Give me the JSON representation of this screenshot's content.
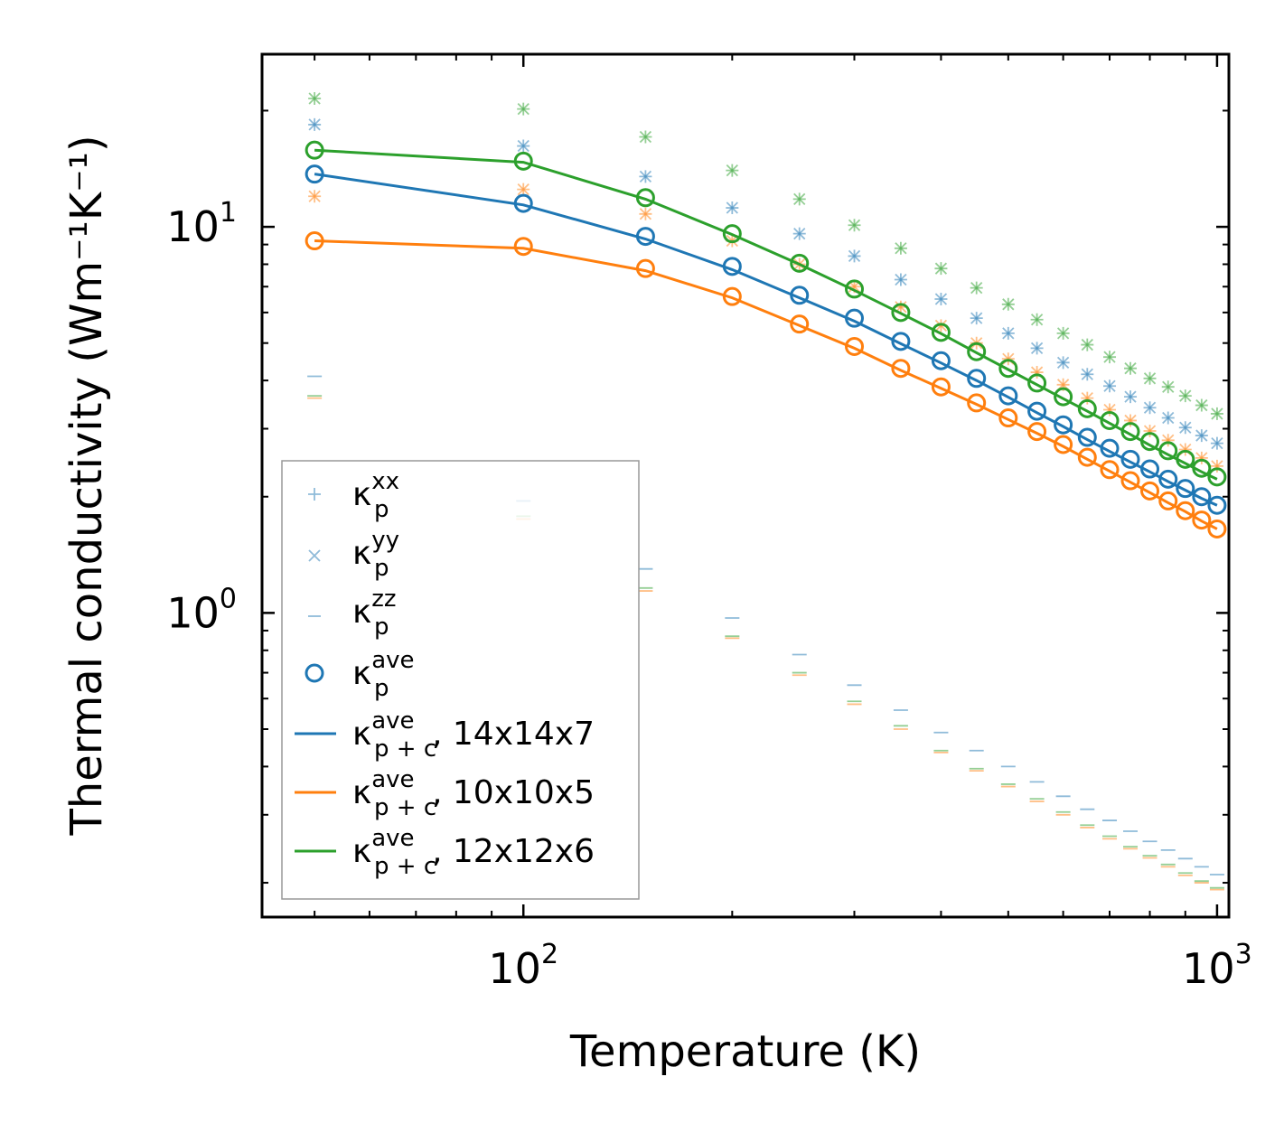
{
  "chart_data": {
    "type": "scatter",
    "xscale": "log",
    "yscale": "log",
    "xlabel": "Temperature (K)",
    "ylabel": "Thermal conductivity (Wm⁻¹K⁻¹)",
    "xlim": [
      42,
      1040
    ],
    "ylim": [
      0.163,
      28
    ],
    "x_ticks": [
      {
        "base": "10",
        "exp": "2",
        "value": 100
      },
      {
        "base": "10",
        "exp": "3",
        "value": 1000
      }
    ],
    "y_ticks": [
      {
        "base": "10",
        "exp": "0",
        "value": 1
      },
      {
        "base": "10",
        "exp": "1",
        "value": 10
      }
    ],
    "x": [
      50,
      100,
      150,
      200,
      250,
      300,
      350,
      400,
      450,
      500,
      550,
      600,
      650,
      700,
      750,
      800,
      850,
      900,
      950,
      1000
    ],
    "colors": {
      "14x14x7": "#1f77b4",
      "10x10x5": "#ff7f0e",
      "12x12x6": "#2ca02c"
    },
    "series": [
      {
        "name": "14x14x7",
        "color": "#1f77b4",
        "kxx": [
          18.4,
          16.2,
          13.5,
          11.2,
          9.6,
          8.4,
          7.3,
          6.5,
          5.8,
          5.3,
          4.85,
          4.45,
          4.15,
          3.87,
          3.63,
          3.4,
          3.2,
          3.02,
          2.88,
          2.75
        ],
        "kyy": [
          18.4,
          16.2,
          13.5,
          11.2,
          9.6,
          8.4,
          7.3,
          6.5,
          5.8,
          5.3,
          4.85,
          4.45,
          4.15,
          3.87,
          3.63,
          3.4,
          3.2,
          3.02,
          2.88,
          2.75
        ],
        "kzz": [
          4.1,
          1.95,
          1.3,
          0.97,
          0.78,
          0.65,
          0.56,
          0.49,
          0.44,
          0.4,
          0.365,
          0.335,
          0.31,
          0.29,
          0.272,
          0.256,
          0.243,
          0.231,
          0.22,
          0.21
        ],
        "kave": [
          13.7,
          11.5,
          9.45,
          7.9,
          6.65,
          5.8,
          5.05,
          4.5,
          4.05,
          3.65,
          3.33,
          3.07,
          2.85,
          2.67,
          2.5,
          2.36,
          2.22,
          2.1,
          2.0,
          1.9
        ],
        "kpc": [
          13.7,
          11.4,
          9.3,
          7.75,
          6.55,
          5.7,
          4.98,
          4.44,
          4.0,
          3.62,
          3.3,
          3.04,
          2.81,
          2.62,
          2.46,
          2.32,
          2.19,
          2.08,
          1.98,
          1.9
        ]
      },
      {
        "name": "10x10x5",
        "color": "#ff7f0e",
        "kxx": [
          12.0,
          12.5,
          10.8,
          9.2,
          8.0,
          7.0,
          6.2,
          5.55,
          5.0,
          4.55,
          4.2,
          3.9,
          3.6,
          3.36,
          3.15,
          2.96,
          2.8,
          2.65,
          2.52,
          2.4
        ],
        "kyy": [
          12.0,
          12.5,
          10.8,
          9.2,
          8.0,
          7.0,
          6.2,
          5.55,
          5.0,
          4.55,
          4.2,
          3.9,
          3.6,
          3.36,
          3.15,
          2.96,
          2.8,
          2.65,
          2.52,
          2.4
        ],
        "kzz": [
          3.6,
          1.75,
          1.14,
          0.86,
          0.69,
          0.58,
          0.5,
          0.435,
          0.39,
          0.355,
          0.325,
          0.3,
          0.278,
          0.26,
          0.245,
          0.232,
          0.22,
          0.209,
          0.2,
          0.192
        ],
        "kave": [
          9.2,
          8.9,
          7.8,
          6.6,
          5.6,
          4.9,
          4.3,
          3.85,
          3.5,
          3.2,
          2.95,
          2.73,
          2.53,
          2.35,
          2.2,
          2.07,
          1.95,
          1.84,
          1.74,
          1.65
        ],
        "kpc": [
          9.2,
          8.8,
          7.7,
          6.55,
          5.55,
          4.85,
          4.25,
          3.82,
          3.47,
          3.17,
          2.92,
          2.7,
          2.5,
          2.33,
          2.18,
          2.05,
          1.93,
          1.83,
          1.73,
          1.65
        ]
      },
      {
        "name": "12x12x6",
        "color": "#2ca02c",
        "kxx": [
          21.5,
          20.2,
          17.1,
          14.0,
          11.8,
          10.1,
          8.8,
          7.8,
          6.95,
          6.3,
          5.75,
          5.3,
          4.95,
          4.6,
          4.3,
          4.05,
          3.85,
          3.65,
          3.45,
          3.28
        ],
        "kyy": [
          21.5,
          20.2,
          17.1,
          14.0,
          11.8,
          10.1,
          8.8,
          7.8,
          6.95,
          6.3,
          5.75,
          5.3,
          4.95,
          4.6,
          4.3,
          4.05,
          3.85,
          3.65,
          3.45,
          3.28
        ],
        "kzz": [
          3.65,
          1.78,
          1.16,
          0.87,
          0.7,
          0.59,
          0.51,
          0.44,
          0.395,
          0.36,
          0.33,
          0.305,
          0.282,
          0.264,
          0.248,
          0.235,
          0.223,
          0.212,
          0.202,
          0.194
        ],
        "kave": [
          15.8,
          14.8,
          11.9,
          9.6,
          8.05,
          6.9,
          6.0,
          5.33,
          4.75,
          4.3,
          3.94,
          3.63,
          3.38,
          3.15,
          2.95,
          2.78,
          2.63,
          2.5,
          2.37,
          2.25
        ],
        "kpc": [
          15.8,
          14.7,
          11.8,
          9.55,
          8.0,
          6.85,
          5.97,
          5.29,
          4.72,
          4.27,
          3.9,
          3.59,
          3.33,
          3.1,
          2.9,
          2.72,
          2.57,
          2.44,
          2.32,
          2.22
        ]
      }
    ],
    "legend": {
      "placement": "lower-left",
      "entries": [
        {
          "kind": "kxx",
          "symbol": "κ",
          "sub": "p",
          "sup": "xx",
          "suffix": ""
        },
        {
          "kind": "kyy",
          "symbol": "κ",
          "sub": "p",
          "sup": "yy",
          "suffix": ""
        },
        {
          "kind": "kzz",
          "symbol": "κ",
          "sub": "p",
          "sup": "zz",
          "suffix": ""
        },
        {
          "kind": "kave",
          "symbol": "κ",
          "sub": "p",
          "sup": "ave",
          "suffix": ""
        },
        {
          "kind": "line",
          "series": 0,
          "symbol": "κ",
          "sub": "p + c",
          "sup": "ave",
          "suffix": ", 14x14x7"
        },
        {
          "kind": "line",
          "series": 1,
          "symbol": "κ",
          "sub": "p + c",
          "sup": "ave",
          "suffix": ", 10x10x5"
        },
        {
          "kind": "line",
          "series": 2,
          "symbol": "κ",
          "sub": "p + c",
          "sup": "ave",
          "suffix": ", 12x12x6"
        }
      ]
    }
  }
}
